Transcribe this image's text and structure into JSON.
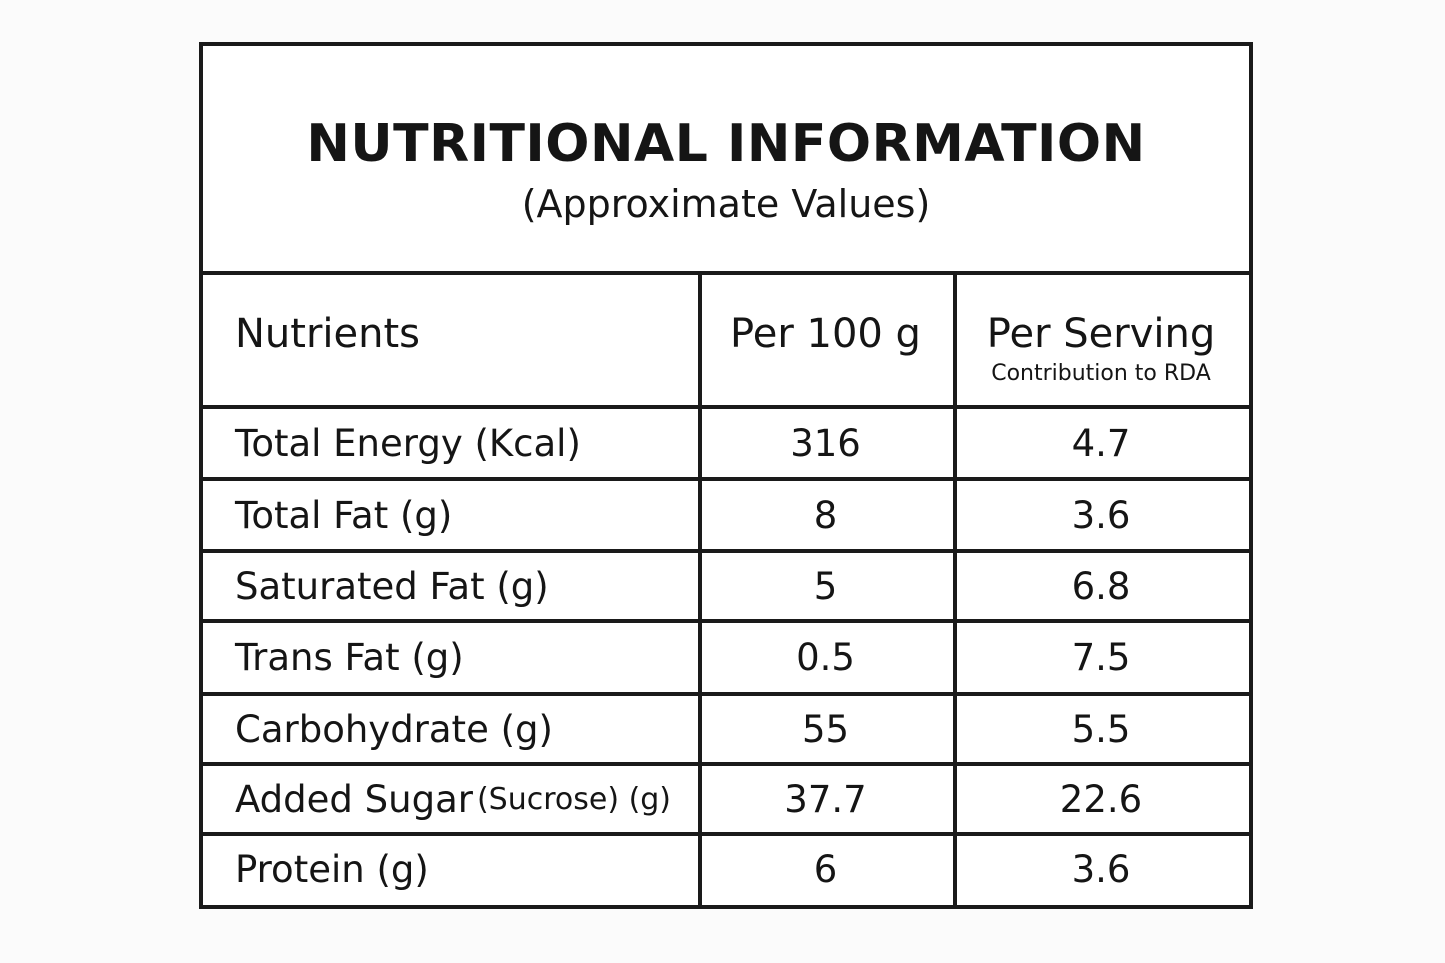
{
  "header": {
    "title": "NUTRITIONAL INFORMATION",
    "subtitle": "(Approximate Values)"
  },
  "table": {
    "columns": {
      "nutrients": "Nutrients",
      "per_100g": "Per 100 g",
      "per_serving": "Per Serving",
      "per_serving_note": "Contribution to RDA"
    },
    "rows": [
      {
        "nutrient": "Total Energy (Kcal)",
        "per_100g": 316,
        "per_serving": 4.7
      },
      {
        "nutrient": "Total Fat (g)",
        "per_100g": 8,
        "per_serving": 3.6
      },
      {
        "nutrient": "Saturated Fat (g)",
        "per_100g": 5,
        "per_serving": 6.8
      },
      {
        "nutrient": "Trans Fat (g)",
        "per_100g": 0.5,
        "per_serving": 7.5
      },
      {
        "nutrient": "Carbohydrate (g)",
        "per_100g": 55,
        "per_serving": 5.5
      },
      {
        "nutrient": "Added Sugar",
        "nutrient_note": "(Sucrose) (g)",
        "per_100g": 37.7,
        "per_serving": 22.6
      },
      {
        "nutrient": "Protein (g)",
        "per_100g": 6,
        "per_serving": 3.6
      }
    ]
  }
}
